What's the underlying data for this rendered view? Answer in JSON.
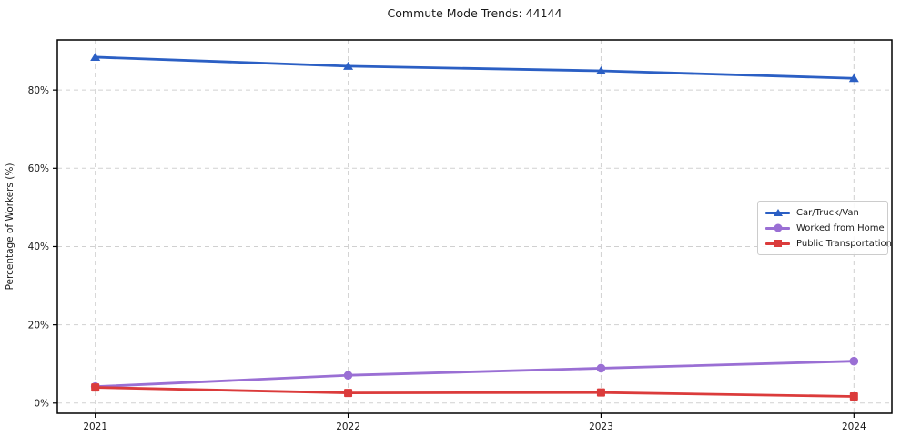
{
  "chart_data": {
    "type": "line",
    "title": "Commute Mode Trends: 44144",
    "xlabel": "",
    "ylabel": "Percentage of Workers (%)",
    "categories": [
      2021,
      2022,
      2023,
      2024
    ],
    "category_labels": [
      "2021",
      "2022",
      "2023",
      "2024"
    ],
    "series": [
      {
        "name": "Car/Truck/Van",
        "color": "#2b5fc4",
        "marker": "triangle",
        "values": [
          88.4,
          86.1,
          84.9,
          83.0
        ]
      },
      {
        "name": "Worked from Home",
        "color": "#9a6fd4",
        "marker": "circle",
        "values": [
          4.2,
          7.1,
          8.9,
          10.7
        ]
      },
      {
        "name": "Public Transportation",
        "color": "#db3b3b",
        "marker": "square",
        "values": [
          4.0,
          2.6,
          2.7,
          1.7
        ]
      }
    ],
    "ytick_labels": [
      "0%",
      "20%",
      "40%",
      "60%",
      "80%"
    ],
    "ytick_values": [
      0,
      20,
      40,
      60,
      80
    ],
    "ylim": [
      -2.6,
      92.8
    ],
    "xlim": [
      2020.85,
      2024.15
    ],
    "grid": true,
    "grid_style": "dashed",
    "grid_color": "#cccccc",
    "axis_color": "#000000",
    "text_color": "#1a1a1a",
    "legend_position": "center-right"
  }
}
